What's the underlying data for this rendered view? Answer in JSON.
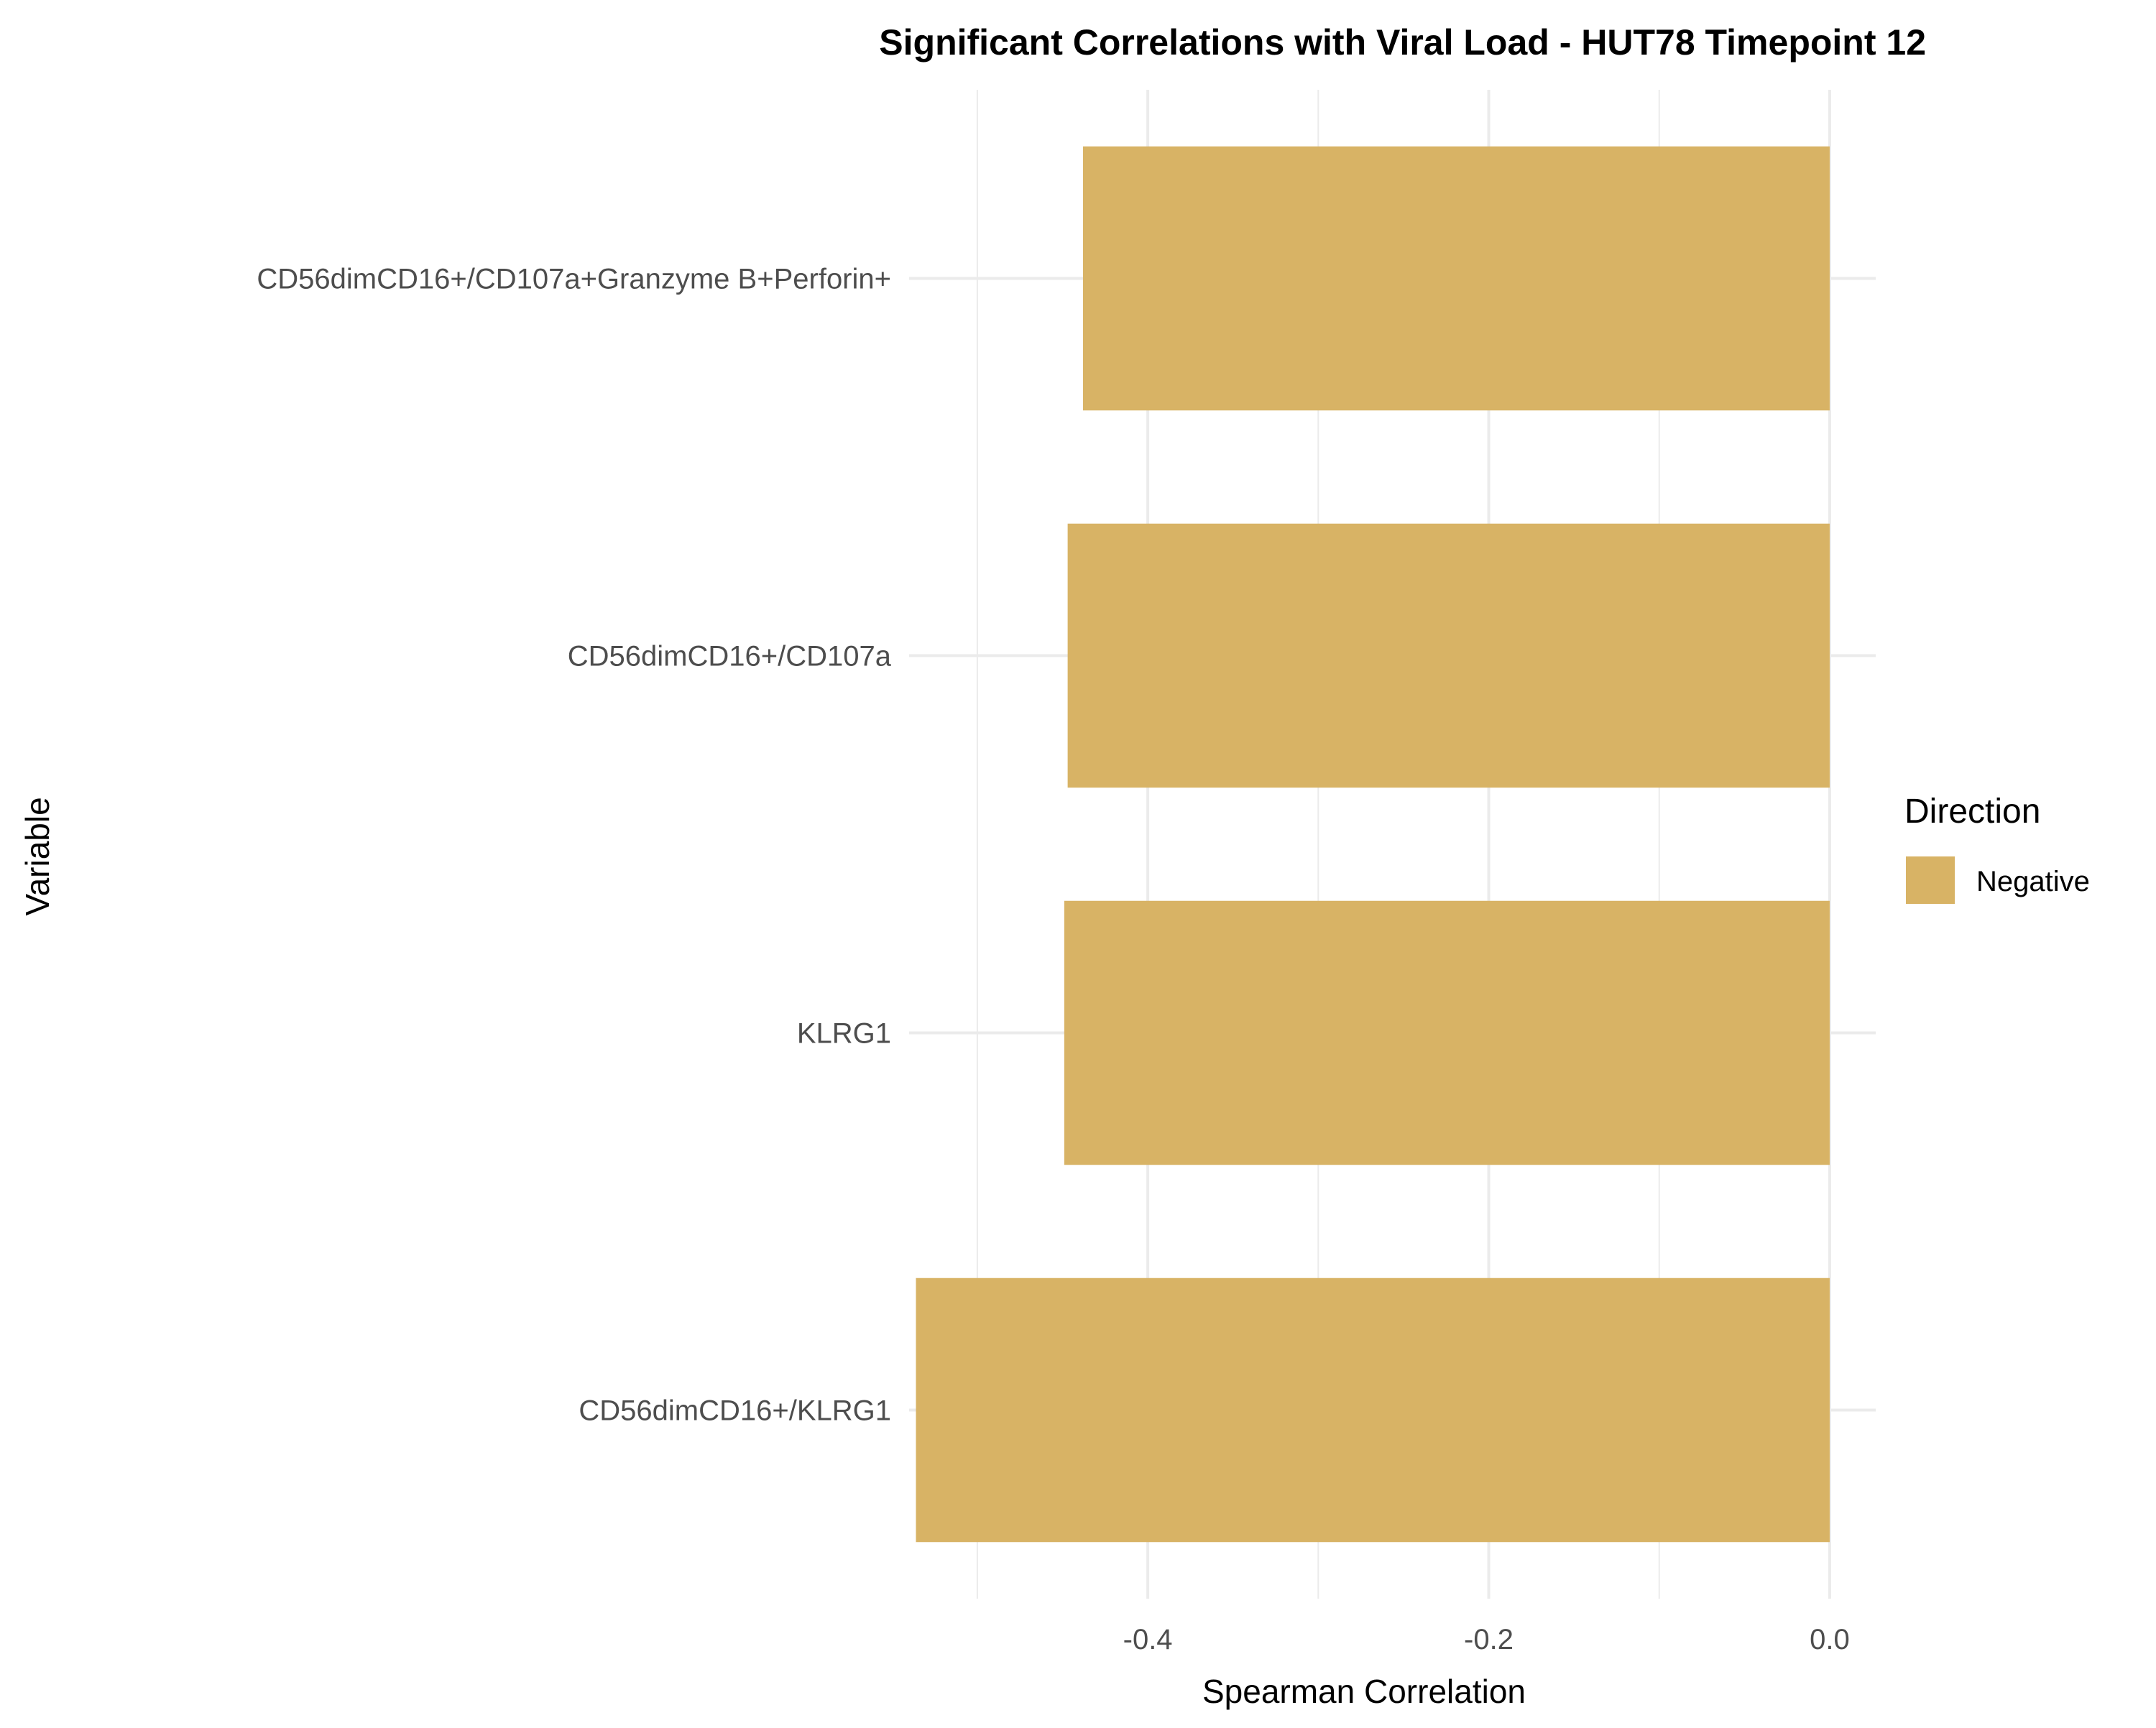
{
  "chart_data": {
    "type": "bar",
    "orientation": "horizontal",
    "title": "Significant Correlations with Viral Load - HUT78 Timepoint 12",
    "xlabel": "Spearman Correlation",
    "ylabel": "Variable",
    "xlim": [
      -0.54,
      0.027
    ],
    "xticks": [
      -0.4,
      -0.2,
      0.0
    ],
    "xtick_labels": [
      "-0.4",
      "-0.2",
      "0.0"
    ],
    "grid": true,
    "categories": [
      "CD56dimCD16+/CD107a+Granzyme B+Perforin+",
      "CD56dimCD16+/CD107a",
      "KLRG1",
      "CD56dimCD16+/KLRG1"
    ],
    "series": [
      {
        "name": "Negative",
        "color": "#D8B365",
        "values": [
          -0.438,
          -0.447,
          -0.449,
          -0.536
        ]
      }
    ],
    "legend": {
      "title": "Direction",
      "position": "right",
      "entries": [
        "Negative"
      ]
    }
  }
}
